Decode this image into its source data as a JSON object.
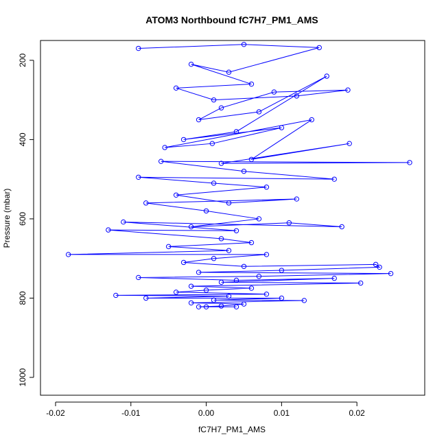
{
  "chart_data": {
    "type": "scatter",
    "title": "ATOM3 Northbound fC7H7_PM1_AMS",
    "xlabel": "fC7H7_PM1_AMS",
    "ylabel": "Pressure (mbar)",
    "xlim": [
      -0.022,
      0.029
    ],
    "ylim": [
      1045,
      150
    ],
    "y_reversed": true,
    "x_ticks": [
      -0.02,
      -0.01,
      0.0,
      0.01,
      0.02
    ],
    "x_tick_labels": [
      "-0.02",
      "-0.01",
      "0.00",
      "0.01",
      "0.02"
    ],
    "y_ticks": [
      200,
      400,
      600,
      800,
      1000
    ],
    "y_tick_labels": [
      "200",
      "400",
      "600",
      "800",
      "1000"
    ],
    "grid": false,
    "series_color": "#0000ff",
    "series": [
      {
        "markers": "open-circle",
        "connected": true,
        "points": [
          [
            -0.009,
            170
          ],
          [
            0.005,
            160
          ],
          [
            0.015,
            168
          ],
          [
            0.003,
            230
          ],
          [
            -0.002,
            210
          ],
          [
            0.006,
            260
          ],
          [
            -0.004,
            270
          ],
          [
            0.001,
            300
          ],
          [
            0.012,
            290
          ],
          [
            0.0188,
            275
          ],
          [
            0.009,
            280
          ],
          [
            0.002,
            320
          ],
          [
            -0.001,
            350
          ],
          [
            0.007,
            330
          ],
          [
            0.016,
            240
          ],
          [
            0.004,
            380
          ],
          [
            -0.003,
            400
          ],
          [
            0.01,
            370
          ],
          [
            0.0008,
            410
          ],
          [
            -0.0055,
            420
          ],
          [
            0.014,
            350
          ],
          [
            0.006,
            450
          ],
          [
            0.019,
            410
          ],
          [
            0.002,
            460
          ],
          [
            0.027,
            458
          ],
          [
            -0.006,
            455
          ],
          [
            0.005,
            480
          ],
          [
            0.017,
            500
          ],
          [
            -0.009,
            495
          ],
          [
            0.001,
            510
          ],
          [
            0.008,
            520
          ],
          [
            -0.004,
            540
          ],
          [
            0.003,
            560
          ],
          [
            0.012,
            550
          ],
          [
            -0.008,
            560
          ],
          [
            0.0,
            580
          ],
          [
            0.007,
            600
          ],
          [
            -0.002,
            620
          ],
          [
            0.011,
            610
          ],
          [
            0.018,
            620
          ],
          [
            -0.011,
            608
          ],
          [
            0.004,
            630
          ],
          [
            -0.013,
            628
          ],
          [
            0.002,
            650
          ],
          [
            0.006,
            660
          ],
          [
            -0.005,
            670
          ],
          [
            0.003,
            680
          ],
          [
            -0.0183,
            690
          ],
          [
            0.008,
            690
          ],
          [
            0.001,
            700
          ],
          [
            -0.003,
            710
          ],
          [
            0.005,
            720
          ],
          [
            0.0225,
            715
          ],
          [
            0.023,
            722
          ],
          [
            0.01,
            730
          ],
          [
            -0.001,
            735
          ],
          [
            0.0245,
            738
          ],
          [
            0.007,
            745
          ],
          [
            -0.009,
            748
          ],
          [
            0.004,
            755
          ],
          [
            0.017,
            750
          ],
          [
            0.002,
            760
          ],
          [
            0.0205,
            762
          ],
          [
            -0.002,
            770
          ],
          [
            0.006,
            775
          ],
          [
            0.0,
            780
          ],
          [
            -0.004,
            785
          ],
          [
            0.008,
            790
          ],
          [
            -0.012,
            793
          ],
          [
            0.003,
            795
          ],
          [
            -0.008,
            800
          ],
          [
            0.01,
            800
          ],
          [
            0.001,
            805
          ],
          [
            0.013,
            806
          ],
          [
            -0.002,
            812
          ],
          [
            0.005,
            815
          ],
          [
            0.002,
            820
          ],
          [
            -0.001,
            822
          ],
          [
            0.004,
            822
          ],
          [
            0.0,
            822
          ]
        ]
      }
    ]
  }
}
